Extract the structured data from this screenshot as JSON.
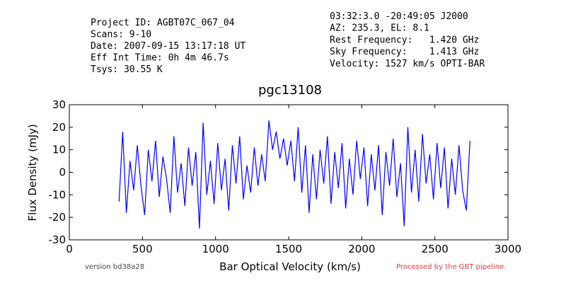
{
  "chart_data": {
    "type": "line",
    "title": "pgc13108",
    "header_left": [
      "Project ID: AGBT07C_067_04",
      "Scans: 9-10",
      "Date: 2007-09-15 13:17:18 UT",
      "Eff Int Time: 0h 4m 46.7s",
      "Tsys: 30.55 K"
    ],
    "header_right": [
      "03:32:3.0 -20:49:05 J2000",
      "AZ: 235.3, EL: 8.1",
      "Rest Frequency:   1.420 GHz",
      "Sky Frequency:    1.413 GHz",
      "Velocity: 1527 km/s OPTI-BAR"
    ],
    "x_label": "Bar Optical Velocity (km/s)",
    "y_label": "Flux Density (mJy)",
    "footer_left": "version bd38a28",
    "footer_right": "Processed by the GBT pipeline.",
    "xlim": [
      0,
      3000
    ],
    "xticks": [
      0,
      500,
      1000,
      1500,
      2000,
      2500,
      3000
    ],
    "ylim": [
      -30,
      30
    ],
    "yticks": [
      -30,
      -20,
      -10,
      0,
      10,
      20,
      30
    ],
    "x": [
      340,
      365,
      390,
      415,
      440,
      465,
      490,
      515,
      540,
      565,
      590,
      615,
      640,
      665,
      690,
      715,
      740,
      765,
      790,
      815,
      840,
      865,
      890,
      915,
      940,
      965,
      990,
      1015,
      1040,
      1065,
      1090,
      1115,
      1140,
      1165,
      1190,
      1215,
      1240,
      1265,
      1290,
      1315,
      1340,
      1365,
      1390,
      1415,
      1440,
      1465,
      1490,
      1515,
      1540,
      1565,
      1590,
      1615,
      1640,
      1665,
      1690,
      1715,
      1740,
      1765,
      1790,
      1815,
      1840,
      1865,
      1890,
      1915,
      1940,
      1965,
      1990,
      2015,
      2040,
      2065,
      2090,
      2115,
      2140,
      2165,
      2190,
      2215,
      2240,
      2265,
      2290,
      2315,
      2340,
      2365,
      2390,
      2415,
      2440,
      2465,
      2490,
      2515,
      2540,
      2565,
      2590,
      2615,
      2640,
      2665,
      2690,
      2715,
      2740
    ],
    "series": [
      {
        "color": "#0000ff",
        "values": [
          -13,
          18,
          -18,
          5,
          -8,
          12,
          -6,
          -19,
          10,
          -4,
          14,
          -11,
          7,
          -3,
          -18,
          16,
          -9,
          4,
          -15,
          11,
          -6,
          9,
          -25,
          22,
          -10,
          5,
          -14,
          13,
          -8,
          6,
          -17,
          12,
          -5,
          16,
          -12,
          3,
          -9,
          11,
          -6,
          8,
          -4,
          23,
          10,
          18,
          6,
          15,
          3,
          14,
          -4,
          20,
          -9,
          12,
          -18,
          8,
          -12,
          10,
          -5,
          16,
          -14,
          9,
          -7,
          13,
          -16,
          6,
          -10,
          14,
          -3,
          11,
          -15,
          8,
          -8,
          12,
          -19,
          9,
          -6,
          15,
          -11,
          4,
          -24,
          20,
          -9,
          10,
          -13,
          17,
          -5,
          8,
          -12,
          13,
          -7,
          11,
          -16,
          6,
          -10,
          12,
          -8,
          -17,
          14
        ]
      }
    ]
  }
}
